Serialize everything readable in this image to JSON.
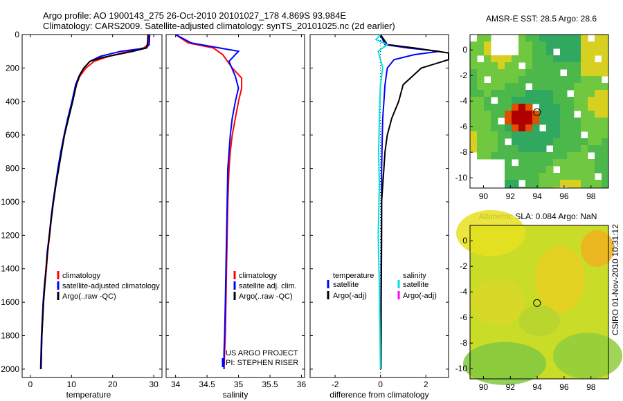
{
  "header": {
    "title_line1": "Argo profile: AO 1900143_275 26-Oct-2010 20101027_178 4.869S 93.984E",
    "title_line2": "Climatology: CARS2009. Satellite-adjusted climatology: synTS_20101025.nc (2d earlier)"
  },
  "colors": {
    "climatology": "#ff0000",
    "satellite": "#0000ff",
    "argo": "#000000",
    "salinity_satellite": "#00e0e0",
    "salinity_argo": "#ff00ff"
  },
  "side_label": "CSIRO 01-Nov-2010 10:31:12",
  "credit": {
    "line1": "US ARGO PROJECT",
    "line2": "PI: STEPHEN RISER"
  },
  "chart_data": [
    {
      "type": "line",
      "id": "temperature",
      "title": "",
      "xlabel": "temperature",
      "ylabel": "",
      "xlim": [
        -2,
        32
      ],
      "ylim": [
        2050,
        0
      ],
      "xticks": [
        0,
        10,
        20,
        30
      ],
      "yticks": [
        0,
        200,
        400,
        600,
        800,
        1000,
        1200,
        1400,
        1600,
        1800,
        2000
      ],
      "legend": [
        "climatology",
        "satellite-adjusted climatology",
        "Argo(..raw -QC)"
      ],
      "legend_position": "lower-left",
      "series": [
        {
          "name": "climatology",
          "color": "#ff0000",
          "x": [
            28.8,
            28.7,
            27.5,
            24,
            19,
            15.5,
            13.5,
            12,
            11.2,
            10.2,
            9.2,
            8.3,
            7.5,
            6.8,
            6.2,
            5.6,
            5.1,
            4.7,
            4.2,
            3.9,
            3.5,
            3.2,
            2.8,
            2.6
          ],
          "y": [
            0,
            60,
            80,
            100,
            130,
            160,
            200,
            250,
            300,
            400,
            500,
            600,
            700,
            800,
            900,
            1000,
            1100,
            1200,
            1300,
            1400,
            1500,
            1600,
            1800,
            2000
          ]
        },
        {
          "name": "satellite-adjusted climatology",
          "color": "#0000ff",
          "x": [
            29.0,
            28.9,
            28.2,
            22,
            17,
            14.5,
            13,
            11.8,
            11,
            10.1,
            9.1,
            8.2,
            7.4,
            6.7,
            6.1,
            5.5,
            5.0,
            4.6,
            4.1,
            3.8,
            3.4,
            3.1,
            2.7,
            2.5
          ],
          "y": [
            0,
            60,
            80,
            100,
            130,
            160,
            200,
            250,
            300,
            400,
            500,
            600,
            700,
            800,
            900,
            1000,
            1100,
            1200,
            1300,
            1400,
            1500,
            1600,
            1800,
            2000
          ]
        },
        {
          "name": "Argo(..raw -QC)",
          "color": "#000000",
          "x": [
            28.6,
            28.5,
            28.2,
            25,
            21,
            17,
            14.5,
            13,
            12,
            11.2,
            10.3,
            9.3,
            8.3,
            7.6,
            6.9,
            6.2,
            5.6,
            5.1,
            4.6,
            4.2,
            3.8,
            3.5,
            3.2,
            2.8,
            2.6
          ],
          "y": [
            0,
            50,
            80,
            100,
            120,
            140,
            160,
            200,
            240,
            300,
            400,
            500,
            600,
            700,
            800,
            900,
            1000,
            1100,
            1200,
            1300,
            1400,
            1500,
            1600,
            1800,
            2000
          ]
        }
      ]
    },
    {
      "type": "line",
      "id": "salinity",
      "title": "",
      "xlabel": "salinity",
      "xlim": [
        33.85,
        36.05
      ],
      "ylim": [
        2050,
        0
      ],
      "xticks": [
        34,
        34.5,
        35,
        35.5,
        36
      ],
      "legend": [
        "climatology",
        "satellite adj. clim.",
        "Argo(..raw -QC)"
      ],
      "legend_position": "lower-right",
      "series": [
        {
          "name": "climatology",
          "color": "#ff0000",
          "x": [
            34.0,
            34.2,
            34.6,
            34.75,
            34.9,
            35.05,
            35.05,
            35.0,
            34.95,
            34.9,
            34.87,
            34.85,
            34.83,
            34.82,
            34.81,
            34.8,
            34.79,
            34.78,
            34.77
          ],
          "y": [
            0,
            50,
            80,
            120,
            200,
            260,
            320,
            400,
            500,
            600,
            700,
            800,
            1000,
            1200,
            1400,
            1600,
            1800,
            1900,
            2000
          ]
        },
        {
          "name": "satellite adj. clim.",
          "color": "#0000ff",
          "x": [
            34.0,
            34.25,
            34.7,
            35.0,
            34.85,
            34.95,
            35.0,
            34.95,
            34.9,
            34.87,
            34.85,
            34.83,
            34.82,
            34.81,
            34.8,
            34.79,
            34.78,
            34.77,
            34.77
          ],
          "y": [
            0,
            50,
            80,
            100,
            160,
            250,
            320,
            400,
            500,
            600,
            700,
            800,
            1000,
            1200,
            1400,
            1600,
            1800,
            1900,
            2000
          ]
        }
      ]
    },
    {
      "type": "line",
      "id": "difference",
      "title": "",
      "xlabel": "difference from climatology",
      "xlim": [
        -3.1,
        3.0
      ],
      "ylim": [
        2050,
        0
      ],
      "xticks": [
        -2,
        0,
        2
      ],
      "legend_groups": [
        {
          "heading": "temperature",
          "items": [
            "satellite",
            "Argo(-adj)"
          ]
        },
        {
          "heading": "salinity",
          "items": [
            "satellite",
            "Argo(-adj)"
          ]
        }
      ],
      "legend_position": "lower-center",
      "series": [
        {
          "name": "temperature satellite",
          "color": "#0000ff",
          "x": [
            0.0,
            0.2,
            1.2,
            2.6,
            1.5,
            0.6,
            0.3,
            0.2,
            0.15,
            0.1,
            0.08,
            0.05,
            0.05,
            0.04,
            0.03,
            0.03,
            0.02,
            0.02
          ],
          "y": [
            0,
            60,
            80,
            100,
            120,
            150,
            200,
            300,
            400,
            500,
            600,
            800,
            1000,
            1200,
            1400,
            1600,
            1800,
            2000
          ]
        },
        {
          "name": "temperature Argo(-adj)",
          "color": "#000000",
          "x": [
            0.0,
            0.3,
            1.5,
            3.0,
            3.0,
            1.8,
            1.0,
            0.8,
            0.5,
            0.3,
            0.2,
            0.15,
            0.1,
            0.05,
            0.05,
            0.04,
            0.03,
            0.03,
            0.02
          ],
          "y": [
            0,
            60,
            80,
            110,
            150,
            200,
            300,
            400,
            500,
            600,
            700,
            800,
            900,
            1000,
            1200,
            1400,
            1600,
            1800,
            2000
          ]
        },
        {
          "name": "salinity satellite",
          "color": "#00e0e0",
          "x": [
            0.0,
            -0.2,
            0.3,
            -0.1,
            0.1,
            0.0,
            -0.05,
            -0.08,
            -0.05,
            -0.1,
            -0.05,
            -0.02,
            0.0
          ],
          "y": [
            0,
            30,
            60,
            100,
            200,
            300,
            500,
            700,
            900,
            1200,
            1500,
            1800,
            2000
          ]
        }
      ]
    }
  ],
  "maps": [
    {
      "id": "sst",
      "title": "AMSR-E SST: 28.5 Argo: 28.6",
      "xticks": [
        90,
        92,
        94,
        96,
        98
      ],
      "yticks": [
        0,
        -2,
        -4,
        -6,
        -8,
        -10
      ],
      "lon_range": [
        89,
        99.3
      ],
      "lat_range": [
        -10.8,
        1.2
      ],
      "argo_position": [
        93.984,
        -4.869
      ]
    },
    {
      "id": "sla",
      "title": "Altimetric SLA: 0.084 Argo: NaN",
      "xticks": [
        90,
        92,
        94,
        96,
        98
      ],
      "yticks": [
        0,
        -2,
        -4,
        -6,
        -8,
        -10
      ],
      "lon_range": [
        89,
        99.3
      ],
      "lat_range": [
        -10.8,
        1.2
      ],
      "argo_position": [
        93.984,
        -4.869
      ]
    }
  ]
}
